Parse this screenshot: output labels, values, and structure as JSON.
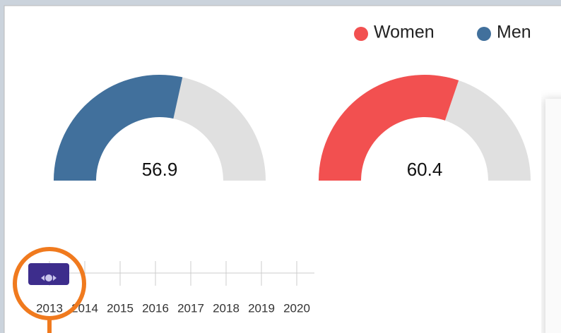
{
  "chart_data": {
    "type": "gauge",
    "series": [
      {
        "name": "Women",
        "color": "#f25050",
        "values": [
          60.4
        ]
      },
      {
        "name": "Men",
        "color": "#41709c",
        "values": [
          56.9
        ]
      }
    ],
    "ylim": [
      0,
      100
    ]
  },
  "slider": {
    "years": [
      2013,
      2014,
      2015,
      2016,
      2017,
      2018,
      2019,
      2020
    ]
  }
}
